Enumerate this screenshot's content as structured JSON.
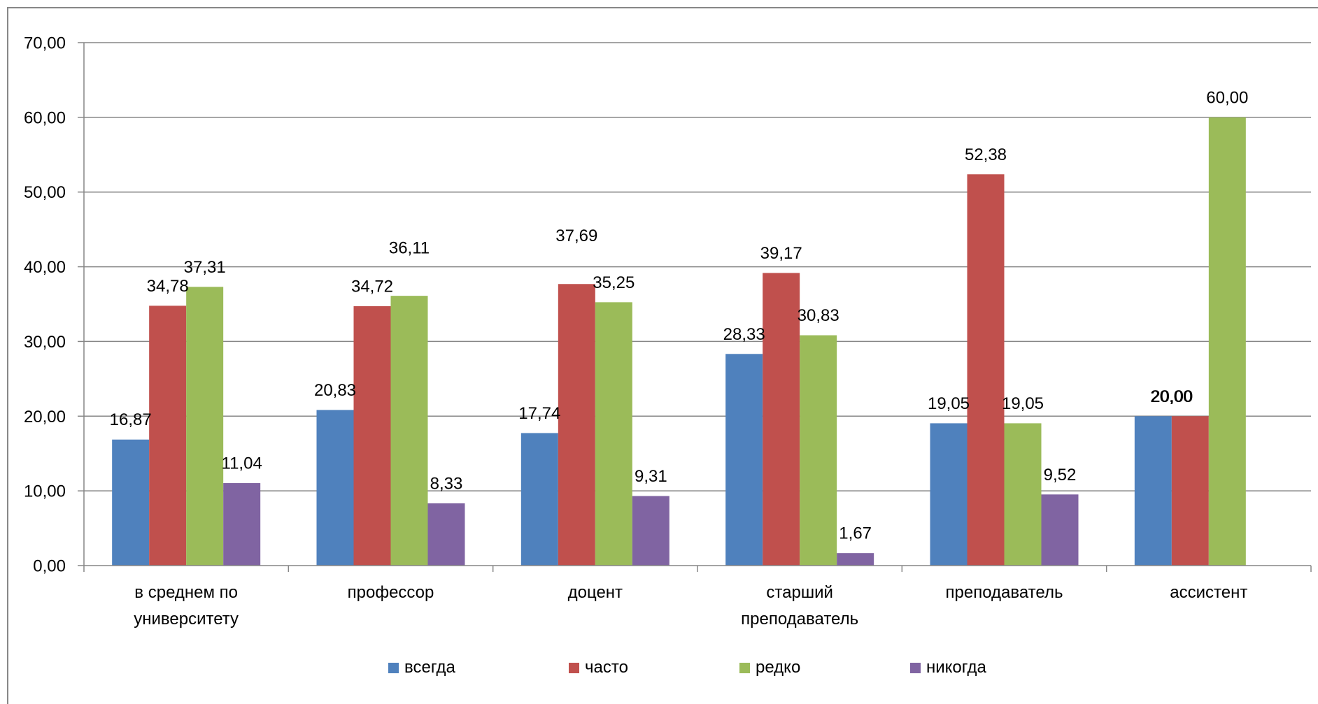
{
  "chart_data": {
    "type": "bar",
    "title": "",
    "xlabel": "",
    "ylabel": "",
    "categories": [
      "в среднем по университету",
      "профессор",
      "доцент",
      "старший преподаватель",
      "преподаватель",
      "ассистент"
    ],
    "series": [
      {
        "name": "всегда",
        "color": "#4F81BD",
        "values": [
          16.87,
          20.83,
          17.74,
          28.33,
          19.05,
          20.0
        ]
      },
      {
        "name": "часто",
        "color": "#C0504D",
        "values": [
          34.78,
          34.72,
          37.69,
          39.17,
          52.38,
          20.0
        ]
      },
      {
        "name": "редко",
        "color": "#9BBB59",
        "values": [
          37.31,
          36.11,
          35.25,
          30.83,
          19.05,
          60.0
        ]
      },
      {
        "name": "никогда",
        "color": "#8064A2",
        "values": [
          11.04,
          8.33,
          9.31,
          1.67,
          9.52,
          null
        ]
      }
    ],
    "ylim": [
      0,
      70
    ],
    "y_tick_labels": [
      "0,00",
      "10,00",
      "20,00",
      "30,00",
      "40,00",
      "50,00",
      "60,00",
      "70,00"
    ],
    "grid": true,
    "data_labels": true,
    "legend_position": "bottom",
    "axis_color": "#868686"
  }
}
